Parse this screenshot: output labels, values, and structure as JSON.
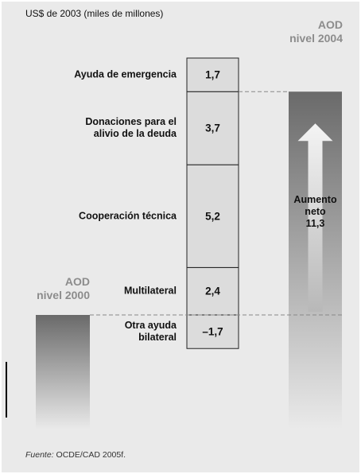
{
  "chart_data": {
    "type": "waterfall",
    "subtitle": "US$ de 2003 (miles de millones)",
    "categories": [
      "Ayuda de emergencia",
      "Donaciones para el\nalivio de la deuda",
      "Cooperación técnica",
      "Multilateral",
      "Otra ayuda\nbilateral"
    ],
    "values": [
      1.7,
      3.7,
      5.2,
      2.4,
      -1.7
    ],
    "value_labels": [
      "1,7",
      "3,7",
      "5,2",
      "2,4",
      "–1,7"
    ],
    "color": "#dcdcdc",
    "start_label": "AOD\nnivel 2000",
    "end_label": "AOD\nnivel 2004",
    "net": {
      "label": "Aumento\nneto",
      "value": 11.3,
      "value_label": "11,3"
    },
    "source": {
      "label": "Fuente:",
      "text": "OCDE/CAD 2005f."
    }
  }
}
